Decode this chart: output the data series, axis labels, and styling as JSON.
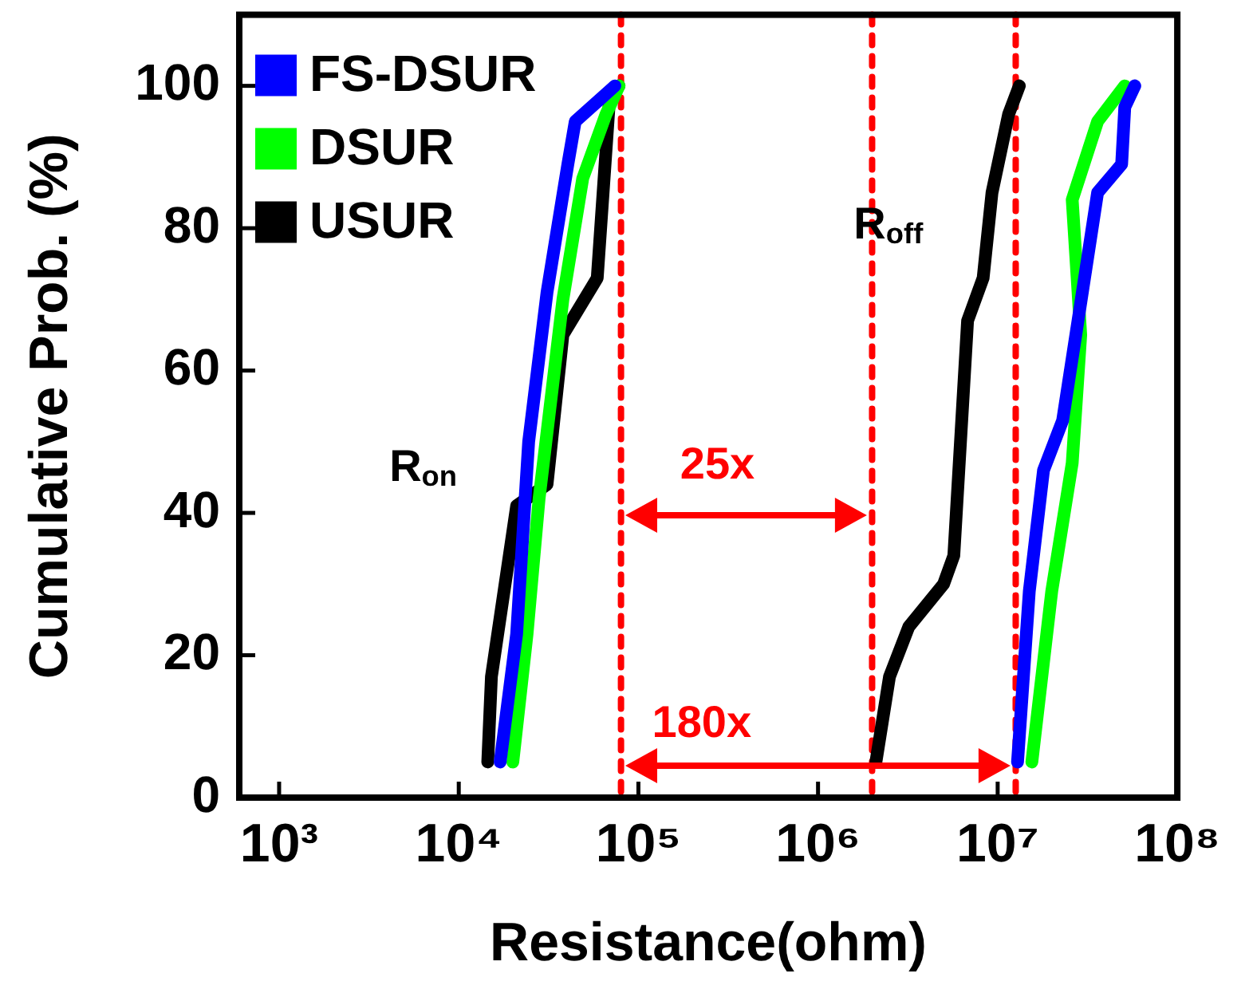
{
  "chart_data": {
    "type": "line",
    "xlabel": "Resistance(ohm)",
    "ylabel": "Cumulative Prob. (%)",
    "log": "x",
    "xlim": [
      600,
      100000000
    ],
    "xticks": [
      {
        "value": 1000,
        "label": "10³"
      },
      {
        "value": 10000,
        "label": "10⁴"
      },
      {
        "value": 100000,
        "label": "10⁵"
      },
      {
        "value": 1000000,
        "label": "10⁶"
      },
      {
        "value": 10000000,
        "label": "10⁷"
      },
      {
        "value": 100000000,
        "label": "10⁸"
      }
    ],
    "ylim": [
      0,
      110
    ],
    "yticks": [
      0,
      20,
      40,
      60,
      80,
      100
    ],
    "grid": false,
    "legend": "top left",
    "marker": "none",
    "line_style": "solid",
    "series": [
      {
        "name": "FS-DSUR",
        "color": "#0000ff",
        "x": [
          17000,
          21000,
          24500,
          31000,
          40500,
          44500,
          74000,
          null,
          12900000,
          15000000,
          18000000,
          23000000,
          28000000,
          36000000,
          49000000,
          51000000,
          58000000
        ],
        "values": [
          5,
          23,
          50,
          71,
          89,
          95,
          100,
          null,
          5,
          29,
          46,
          53,
          67,
          85,
          89,
          97,
          100
        ]
      },
      {
        "name": "DSUR",
        "color": "#00ff00",
        "x": [
          20000,
          24000,
          28000,
          38000,
          49000,
          66000,
          78000,
          null,
          15500000,
          20000000,
          26000000,
          29000000,
          26000000,
          36000000,
          51000000
        ],
        "values": [
          5,
          23,
          42,
          70,
          87,
          96,
          100,
          null,
          5,
          29,
          47,
          65,
          84,
          95,
          100
        ]
      },
      {
        "name": "USUR",
        "color": "#000000",
        "x": [
          14500,
          15200,
          21000,
          31000,
          38000,
          59000,
          69000,
          78000,
          null,
          2100000,
          2500000,
          3200000,
          5000000,
          5700000,
          6800000,
          8300000,
          9300000,
          11500000,
          13200000
        ],
        "values": [
          5,
          17,
          41,
          44,
          65,
          73,
          98,
          100,
          null,
          5,
          17,
          24,
          30,
          34,
          67,
          73,
          85,
          96,
          100
        ]
      }
    ],
    "ref_lines": [
      {
        "axis": "x",
        "value": 80000,
        "color": "#ff0000",
        "line_style": "dotted"
      },
      {
        "axis": "x",
        "value": 2000000,
        "color": "#ff0000",
        "line_style": "dotted"
      },
      {
        "axis": "x",
        "value": 12600000,
        "color": "#ff0000",
        "line_style": "dotted"
      }
    ],
    "annotations": [
      "R$_{on}$",
      "R$_{off}$",
      "25x",
      "180x"
    ]
  }
}
